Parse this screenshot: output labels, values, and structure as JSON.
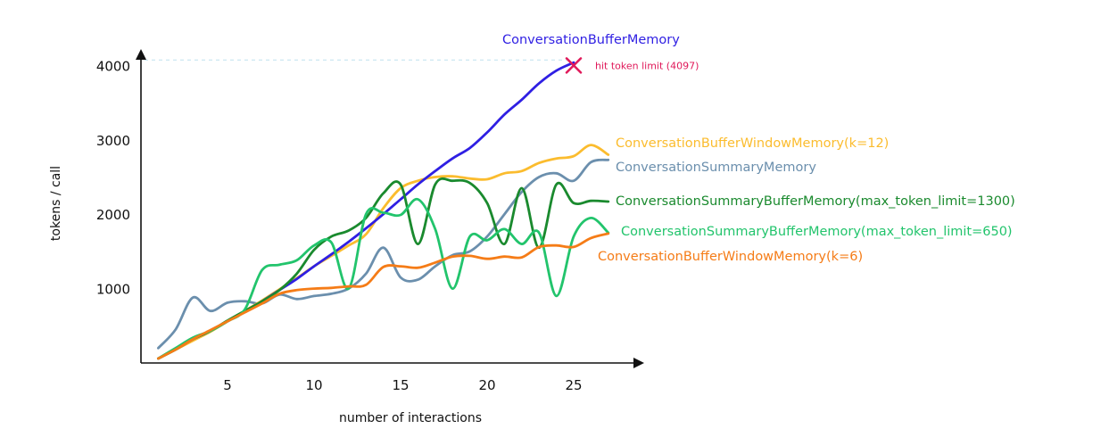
{
  "chart_data": {
    "type": "line",
    "title": "",
    "xlabel": "number of interactions",
    "ylabel": "tokens / call",
    "xlim": [
      0,
      29
    ],
    "ylim": [
      -100,
      4200
    ],
    "x_ticks": [
      5,
      10,
      15,
      20,
      25
    ],
    "y_ticks": [
      1000,
      2000,
      3000,
      4000
    ],
    "grid": false,
    "legend": "direct labels at line ends",
    "token_limit": 4097,
    "annotation": {
      "text": "hit token limit (4097)",
      "x": 25,
      "y": 4000,
      "color": "#e0195a"
    },
    "series": [
      {
        "name": "ConversationBufferMemory",
        "color": "#2f1fe3",
        "x": [
          1,
          2,
          3,
          4,
          5,
          6,
          7,
          8,
          9,
          10,
          11,
          12,
          13,
          14,
          15,
          16,
          17,
          18,
          19,
          20,
          21,
          22,
          23,
          24,
          25
        ],
        "values": [
          60,
          190,
          320,
          430,
          560,
          690,
          830,
          980,
          1130,
          1300,
          1460,
          1630,
          1810,
          2000,
          2200,
          2400,
          2580,
          2750,
          2890,
          3100,
          3340,
          3540,
          3760,
          3930,
          4040
        ]
      },
      {
        "name": "ConversationBufferWindowMemory(k=12)",
        "color": "#fbbc2e",
        "x": [
          1,
          2,
          3,
          4,
          5,
          6,
          7,
          8,
          9,
          10,
          11,
          12,
          13,
          14,
          15,
          16,
          17,
          18,
          19,
          20,
          21,
          22,
          23,
          24,
          25,
          26,
          27
        ],
        "values": [
          60,
          180,
          300,
          420,
          560,
          700,
          840,
          990,
          1140,
          1300,
          1440,
          1580,
          1730,
          2080,
          2350,
          2450,
          2500,
          2510,
          2480,
          2470,
          2550,
          2580,
          2690,
          2750,
          2780,
          2930,
          2800
        ]
      },
      {
        "name": "ConversationSummaryMemory",
        "color": "#6b8fad",
        "x": [
          1,
          2,
          3,
          4,
          5,
          6,
          7,
          8,
          9,
          10,
          11,
          12,
          13,
          14,
          15,
          16,
          17,
          18,
          19,
          20,
          21,
          22,
          23,
          24,
          25,
          26,
          27
        ],
        "values": [
          200,
          450,
          880,
          700,
          810,
          830,
          800,
          920,
          860,
          900,
          930,
          1000,
          1200,
          1550,
          1150,
          1120,
          1300,
          1450,
          1500,
          1700,
          2000,
          2300,
          2500,
          2550,
          2450,
          2700,
          2730
        ]
      },
      {
        "name": "ConversationSummaryBufferMemory(max_token_limit=1300)",
        "color": "#1a8a2e",
        "x": [
          1,
          2,
          3,
          4,
          5,
          6,
          7,
          8,
          9,
          10,
          11,
          12,
          13,
          14,
          15,
          16,
          17,
          18,
          19,
          20,
          21,
          22,
          23,
          24,
          25,
          26,
          27
        ],
        "values": [
          60,
          180,
          320,
          430,
          570,
          700,
          830,
          980,
          1200,
          1520,
          1700,
          1780,
          1950,
          2280,
          2400,
          1600,
          2400,
          2450,
          2420,
          2150,
          1600,
          2350,
          1550,
          2400,
          2150,
          2180,
          2170
        ]
      },
      {
        "name": "ConversationSummaryBufferMemory(max_token_limit=650)",
        "color": "#22c46c",
        "x": [
          1,
          2,
          3,
          4,
          5,
          6,
          7,
          8,
          9,
          10,
          11,
          12,
          13,
          14,
          15,
          16,
          17,
          18,
          19,
          20,
          21,
          22,
          23,
          24,
          25,
          26,
          27
        ],
        "values": [
          60,
          200,
          340,
          430,
          560,
          720,
          1250,
          1320,
          1380,
          1580,
          1620,
          1000,
          2000,
          2020,
          1990,
          2200,
          1800,
          1000,
          1700,
          1650,
          1800,
          1600,
          1750,
          900,
          1700,
          1950,
          1750
        ]
      },
      {
        "name": "ConversationBufferWindowMemory(k=6)",
        "color": "#f57c17",
        "x": [
          1,
          2,
          3,
          4,
          5,
          6,
          7,
          8,
          9,
          10,
          11,
          12,
          13,
          14,
          15,
          16,
          17,
          18,
          19,
          20,
          21,
          22,
          23,
          24,
          25,
          26,
          27
        ],
        "values": [
          60,
          180,
          320,
          440,
          560,
          680,
          800,
          930,
          980,
          1000,
          1010,
          1030,
          1050,
          1290,
          1300,
          1280,
          1350,
          1430,
          1440,
          1400,
          1430,
          1420,
          1560,
          1580,
          1560,
          1680,
          1740
        ]
      }
    ]
  }
}
